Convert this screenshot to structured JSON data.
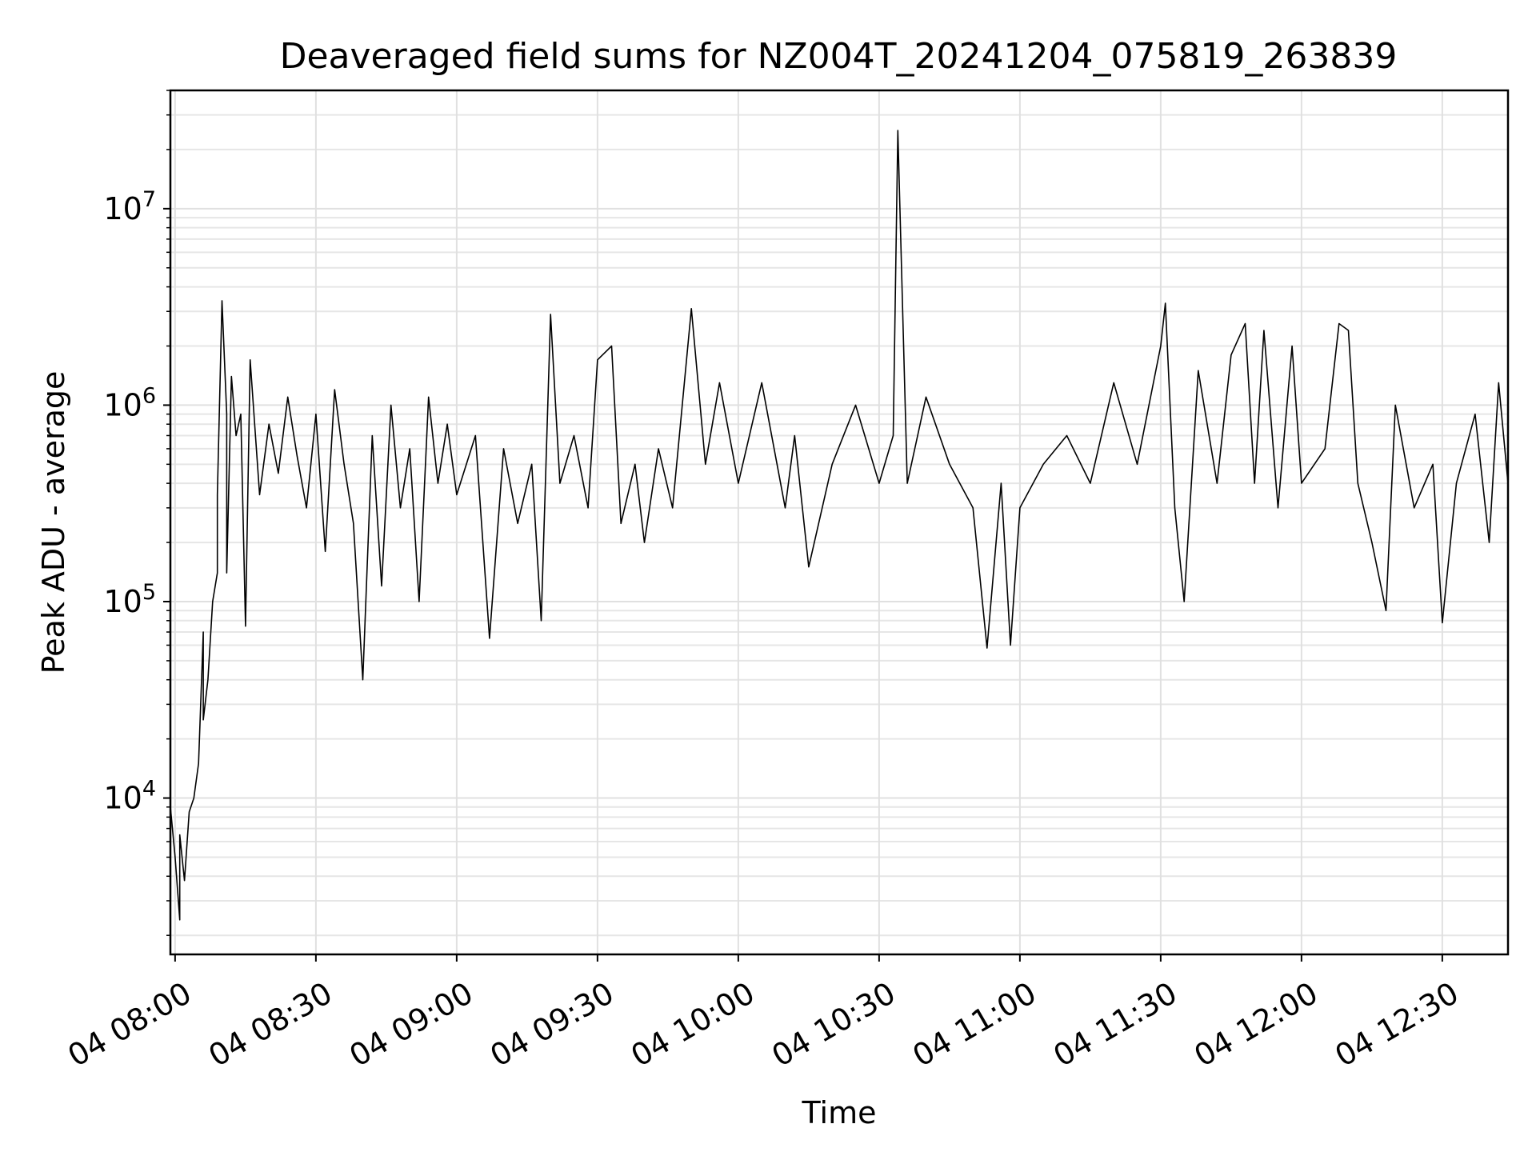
{
  "chart_data": {
    "type": "line",
    "title": "Deaveraged field sums for NZ004T_20241204_075819_263839",
    "xlabel": "Time",
    "ylabel": "Peak ADU - average",
    "xscale": "time",
    "yscale": "log",
    "xlim": [
      "2024-12-04 07:59",
      "2024-12-04 12:44"
    ],
    "ylim": [
      1600,
      40000000
    ],
    "grid": true,
    "x_ticks": [
      {
        "t": "2024-12-04 08:00",
        "label": "04 08:00"
      },
      {
        "t": "2024-12-04 08:30",
        "label": "04 08:30"
      },
      {
        "t": "2024-12-04 09:00",
        "label": "04 09:00"
      },
      {
        "t": "2024-12-04 09:30",
        "label": "04 09:30"
      },
      {
        "t": "2024-12-04 10:00",
        "label": "04 10:00"
      },
      {
        "t": "2024-12-04 10:30",
        "label": "04 10:30"
      },
      {
        "t": "2024-12-04 11:00",
        "label": "04 11:00"
      },
      {
        "t": "2024-12-04 11:30",
        "label": "04 11:30"
      },
      {
        "t": "2024-12-04 12:00",
        "label": "04 12:00"
      },
      {
        "t": "2024-12-04 12:30",
        "label": "04 12:30"
      }
    ],
    "y_ticks": [
      {
        "value": 10000,
        "base": "10",
        "exp": "4"
      },
      {
        "value": 100000,
        "base": "10",
        "exp": "5"
      },
      {
        "value": 1000000,
        "base": "10",
        "exp": "6"
      },
      {
        "value": 10000000,
        "base": "10",
        "exp": "7"
      }
    ],
    "series": [
      {
        "color": "#000000",
        "points": [
          [
            "2024-12-04 07:59",
            9000
          ],
          [
            "2024-12-04 08:00",
            5000
          ],
          [
            "2024-12-04 08:01",
            2400
          ],
          [
            "2024-12-04 08:01",
            6500
          ],
          [
            "2024-12-04 08:02",
            3800
          ],
          [
            "2024-12-04 08:03",
            8500
          ],
          [
            "2024-12-04 08:04",
            10000
          ],
          [
            "2024-12-04 08:05",
            15000
          ],
          [
            "2024-12-04 08:06",
            70000
          ],
          [
            "2024-12-04 08:06",
            25000
          ],
          [
            "2024-12-04 08:07",
            40000
          ],
          [
            "2024-12-04 08:08",
            100000
          ],
          [
            "2024-12-04 08:09",
            140000
          ],
          [
            "2024-12-04 08:09",
            350000
          ],
          [
            "2024-12-04 08:10",
            3400000
          ],
          [
            "2024-12-04 08:11",
            900000
          ],
          [
            "2024-12-04 08:11",
            140000
          ],
          [
            "2024-12-04 08:12",
            1400000
          ],
          [
            "2024-12-04 08:13",
            700000
          ],
          [
            "2024-12-04 08:14",
            900000
          ],
          [
            "2024-12-04 08:15",
            75000
          ],
          [
            "2024-12-04 08:16",
            1700000
          ],
          [
            "2024-12-04 08:18",
            350000
          ],
          [
            "2024-12-04 08:20",
            800000
          ],
          [
            "2024-12-04 08:22",
            450000
          ],
          [
            "2024-12-04 08:24",
            1100000
          ],
          [
            "2024-12-04 08:26",
            550000
          ],
          [
            "2024-12-04 08:28",
            300000
          ],
          [
            "2024-12-04 08:30",
            900000
          ],
          [
            "2024-12-04 08:32",
            180000
          ],
          [
            "2024-12-04 08:34",
            1200000
          ],
          [
            "2024-12-04 08:36",
            500000
          ],
          [
            "2024-12-04 08:38",
            250000
          ],
          [
            "2024-12-04 08:40",
            40000
          ],
          [
            "2024-12-04 08:42",
            700000
          ],
          [
            "2024-12-04 08:44",
            120000
          ],
          [
            "2024-12-04 08:46",
            1000000
          ],
          [
            "2024-12-04 08:48",
            300000
          ],
          [
            "2024-12-04 08:50",
            600000
          ],
          [
            "2024-12-04 08:52",
            100000
          ],
          [
            "2024-12-04 08:54",
            1100000
          ],
          [
            "2024-12-04 08:56",
            400000
          ],
          [
            "2024-12-04 08:58",
            800000
          ],
          [
            "2024-12-04 09:00",
            350000
          ],
          [
            "2024-12-04 09:04",
            700000
          ],
          [
            "2024-12-04 09:07",
            65000
          ],
          [
            "2024-12-04 09:10",
            600000
          ],
          [
            "2024-12-04 09:13",
            250000
          ],
          [
            "2024-12-04 09:16",
            500000
          ],
          [
            "2024-12-04 09:18",
            80000
          ],
          [
            "2024-12-04 09:20",
            2900000
          ],
          [
            "2024-12-04 09:22",
            400000
          ],
          [
            "2024-12-04 09:25",
            700000
          ],
          [
            "2024-12-04 09:28",
            300000
          ],
          [
            "2024-12-04 09:30",
            1700000
          ],
          [
            "2024-12-04 09:33",
            2000000
          ],
          [
            "2024-12-04 09:35",
            250000
          ],
          [
            "2024-12-04 09:38",
            500000
          ],
          [
            "2024-12-04 09:40",
            200000
          ],
          [
            "2024-12-04 09:43",
            600000
          ],
          [
            "2024-12-04 09:46",
            300000
          ],
          [
            "2024-12-04 09:50",
            3100000
          ],
          [
            "2024-12-04 09:53",
            500000
          ],
          [
            "2024-12-04 09:56",
            1300000
          ],
          [
            "2024-12-04 10:00",
            400000
          ],
          [
            "2024-12-04 10:05",
            1300000
          ],
          [
            "2024-12-04 10:10",
            300000
          ],
          [
            "2024-12-04 10:12",
            700000
          ],
          [
            "2024-12-04 10:15",
            150000
          ],
          [
            "2024-12-04 10:20",
            500000
          ],
          [
            "2024-12-04 10:25",
            1000000
          ],
          [
            "2024-12-04 10:30",
            400000
          ],
          [
            "2024-12-04 10:33",
            700000
          ],
          [
            "2024-12-04 10:34",
            25000000
          ],
          [
            "2024-12-04 10:36",
            400000
          ],
          [
            "2024-12-04 10:40",
            1100000
          ],
          [
            "2024-12-04 10:45",
            500000
          ],
          [
            "2024-12-04 10:50",
            300000
          ],
          [
            "2024-12-04 10:53",
            58000
          ],
          [
            "2024-12-04 10:56",
            400000
          ],
          [
            "2024-12-04 10:58",
            60000
          ],
          [
            "2024-12-04 11:00",
            300000
          ],
          [
            "2024-12-04 11:05",
            500000
          ],
          [
            "2024-12-04 11:10",
            700000
          ],
          [
            "2024-12-04 11:15",
            400000
          ],
          [
            "2024-12-04 11:20",
            1300000
          ],
          [
            "2024-12-04 11:25",
            500000
          ],
          [
            "2024-12-04 11:30",
            2000000
          ],
          [
            "2024-12-04 11:31",
            3300000
          ],
          [
            "2024-12-04 11:33",
            300000
          ],
          [
            "2024-12-04 11:35",
            100000
          ],
          [
            "2024-12-04 11:38",
            1500000
          ],
          [
            "2024-12-04 11:42",
            400000
          ],
          [
            "2024-12-04 11:45",
            1800000
          ],
          [
            "2024-12-04 11:48",
            2600000
          ],
          [
            "2024-12-04 11:50",
            400000
          ],
          [
            "2024-12-04 11:52",
            2400000
          ],
          [
            "2024-12-04 11:55",
            300000
          ],
          [
            "2024-12-04 11:58",
            2000000
          ],
          [
            "2024-12-04 12:00",
            400000
          ],
          [
            "2024-12-04 12:05",
            600000
          ],
          [
            "2024-12-04 12:08",
            2600000
          ],
          [
            "2024-12-04 12:10",
            2400000
          ],
          [
            "2024-12-04 12:12",
            400000
          ],
          [
            "2024-12-04 12:15",
            200000
          ],
          [
            "2024-12-04 12:18",
            90000
          ],
          [
            "2024-12-04 12:20",
            1000000
          ],
          [
            "2024-12-04 12:24",
            300000
          ],
          [
            "2024-12-04 12:28",
            500000
          ],
          [
            "2024-12-04 12:30",
            78000
          ],
          [
            "2024-12-04 12:33",
            400000
          ],
          [
            "2024-12-04 12:37",
            900000
          ],
          [
            "2024-12-04 12:40",
            200000
          ],
          [
            "2024-12-04 12:42",
            1300000
          ],
          [
            "2024-12-04 12:44",
            400000
          ]
        ]
      }
    ]
  }
}
